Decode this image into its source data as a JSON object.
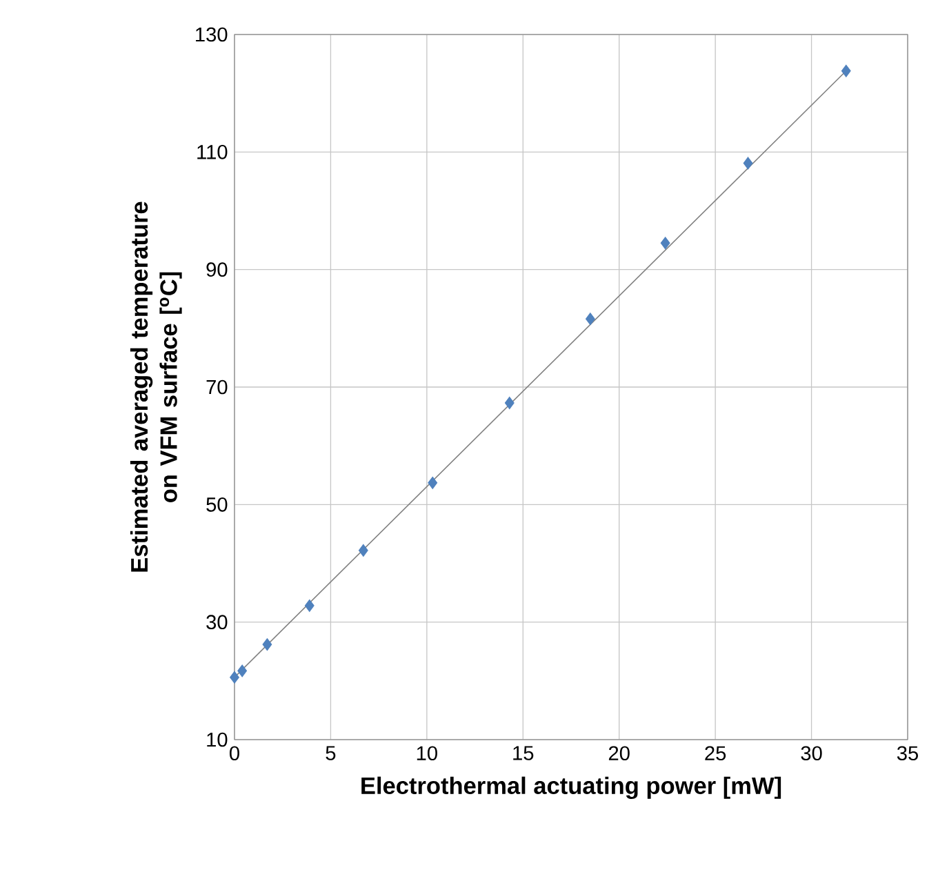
{
  "chart_data": {
    "type": "scatter",
    "xlabel": "Electrothermal actuating power [mW]",
    "ylabel": "Estimated averaged temperature on VFM surface [$^{o}$C]",
    "xlim": [
      0,
      35
    ],
    "ylim": [
      10,
      130
    ],
    "xticks": [
      0,
      5,
      10,
      15,
      20,
      25,
      30,
      35
    ],
    "yticks": [
      10,
      30,
      50,
      70,
      90,
      110,
      130
    ],
    "grid": true,
    "marker": "diamond",
    "series": [
      {
        "color": "#4f81bd",
        "x": [
          0,
          0.4,
          1.7,
          3.9,
          6.7,
          10.3,
          14.3,
          18.5,
          22.4,
          26.7,
          31.8
        ],
        "values": [
          20.6,
          21.7,
          26.2,
          32.8,
          42.2,
          53.7,
          67.3,
          81.6,
          94.5,
          108.1,
          123.8
        ]
      },
      {
        "type": "line",
        "color": "#808080",
        "x": [
          0,
          31.8
        ],
        "values": [
          20.6,
          123.8
        ],
        "marker": "none"
      }
    ]
  }
}
